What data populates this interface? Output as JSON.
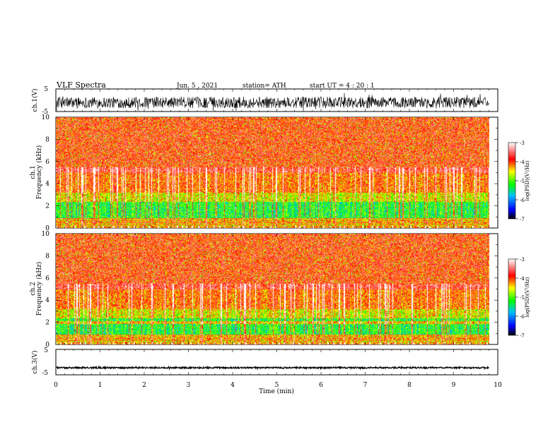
{
  "header": {
    "title": "VLF  Spectra",
    "date": "Jun. 5  , 2021",
    "station": "station= ATH",
    "start": "start  UT  =   4  : 20 : 1"
  },
  "chart_data": [
    {
      "type": "line",
      "name": "ch1-waveform",
      "ylabel": "ch.1(V)",
      "ylim": [
        -5,
        5
      ],
      "yticks": [
        "5",
        "-5"
      ],
      "xlim": [
        0,
        10
      ],
      "x_end": 9.8,
      "mean": -1.0,
      "amplitude": 2.5
    },
    {
      "type": "heatmap",
      "name": "ch1-spectrogram",
      "ylabel": "ch.1\nFrequency  (kHz)",
      "ylim": [
        0,
        10
      ],
      "yticks": [
        "0",
        "2",
        "4",
        "6",
        "8",
        "10"
      ],
      "xlim": [
        0,
        10
      ],
      "x_end": 9.8,
      "colorbar": {
        "label": "log(PSD)(V²/Hz)",
        "range": [
          -7,
          -3
        ],
        "ticks": [
          "-3",
          "-4",
          "-5",
          "-6",
          "-7"
        ],
        "colors": [
          "#000000",
          "#0000ff",
          "#00bfff",
          "#00ff00",
          "#ffff00",
          "#ff0000",
          "#ffffff"
        ]
      }
    },
    {
      "type": "heatmap",
      "name": "ch2-spectrogram",
      "ylabel": "ch.2\nFrequency  (kHz)",
      "ylim": [
        0,
        10
      ],
      "yticks": [
        "0",
        "2",
        "4",
        "6",
        "8",
        "10"
      ],
      "xlim": [
        0,
        10
      ],
      "x_end": 9.8,
      "colorbar": {
        "label": "log(PSD)(V²/Hz)",
        "range": [
          -7,
          -3
        ],
        "ticks": [
          "-3",
          "-4",
          "-5",
          "-6",
          "-7"
        ],
        "colors": [
          "#000000",
          "#0000ff",
          "#00bfff",
          "#00ff00",
          "#ffff00",
          "#ff0000",
          "#ffffff"
        ]
      }
    },
    {
      "type": "line",
      "name": "ch3-waveform",
      "ylabel": "ch.3(V)",
      "ylim": [
        -5,
        5
      ],
      "yticks": [
        "5",
        "-5"
      ],
      "xlim": [
        0,
        10
      ],
      "x_end": 9.8,
      "mean": -2.2,
      "amplitude": 0.3
    }
  ],
  "xaxis": {
    "label": "Time  (min)",
    "ticks": [
      "0",
      "1",
      "2",
      "3",
      "4",
      "5",
      "6",
      "7",
      "8",
      "9",
      "10"
    ]
  }
}
